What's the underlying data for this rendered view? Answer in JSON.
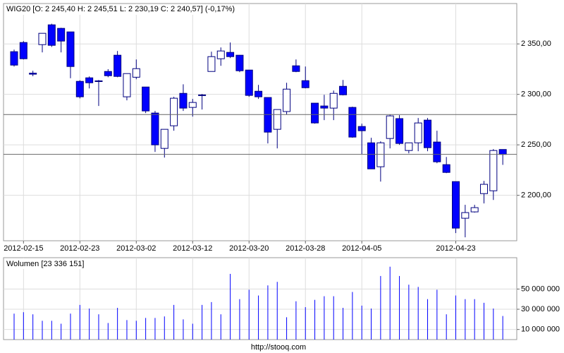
{
  "chart_data": [
    {
      "type": "candlestick",
      "title": "WIG20 [O: 2 245,40  H: 2 245,51  L: 2 230,19  C: 2 240,57] (-0,17%)",
      "categories": [
        null,
        "2012-02-15",
        null,
        null,
        null,
        null,
        null,
        "2012-02-23",
        null,
        null,
        null,
        null,
        null,
        "2012-03-02",
        null,
        null,
        null,
        null,
        null,
        "2012-03-12",
        null,
        null,
        null,
        null,
        null,
        "2012-03-20",
        null,
        null,
        null,
        null,
        null,
        "2012-03-28",
        null,
        null,
        null,
        null,
        null,
        "2012-04-05",
        null,
        null,
        null,
        null,
        null,
        null,
        null,
        null,
        null,
        "2012-04-23",
        null,
        null,
        null,
        null,
        null
      ],
      "open": [
        2342.3,
        2351.4,
        2321,
        2349.3,
        2368.9,
        2365.4,
        2361.9,
        2312.9,
        2316.4,
        2313.4,
        2322.7,
        2338.8,
        2297.6,
        2317,
        2307.3,
        2281.5,
        2246.5,
        2268.9,
        2301,
        2287.1,
        2299.5,
        2322.7,
        2335.3,
        2341.6,
        2338.8,
        2324.1,
        2303.1,
        2296.9,
        2265.4,
        2283,
        2328.3,
        2313.6,
        2291.3,
        2288.5,
        2286.4,
        2308,
        2287.1,
        2268.2,
        2252,
        2228.3,
        2256.3,
        2276,
        2244.4,
        2252,
        2274.5,
        2252.8,
        2230.4,
        2213.6,
        2177.3,
        2183.6,
        2201.7,
        2204.5,
        2245.4
      ],
      "high": [
        2344.4,
        2352.8,
        2323.4,
        2360.5,
        2370,
        2366,
        2362,
        2314,
        2317.8,
        2314.3,
        2325,
        2343,
        2320.6,
        2334.6,
        2307.3,
        2283.6,
        2265.4,
        2297.6,
        2310,
        2295.5,
        2300.4,
        2342.3,
        2346.5,
        2351.4,
        2339,
        2324.1,
        2309.4,
        2296.9,
        2285,
        2311.5,
        2334.6,
        2327.6,
        2291.3,
        2299.6,
        2303.8,
        2314.3,
        2287.8,
        2271,
        2257,
        2253.5,
        2280,
        2279.4,
        2252,
        2276.6,
        2276.6,
        2264,
        2238,
        2213.6,
        2190.6,
        2190.6,
        2214.3,
        2245.8,
        2245.51
      ],
      "low": [
        2327.6,
        2334.6,
        2318,
        2341.6,
        2347,
        2341.6,
        2316,
        2296,
        2305.9,
        2288.5,
        2317,
        2317,
        2294.1,
        2315,
        2281.5,
        2243,
        2237.4,
        2264,
        2283.6,
        2278,
        2285,
        2322.7,
        2328.3,
        2336,
        2322,
        2297.6,
        2295.5,
        2251.4,
        2246.5,
        2280,
        2322,
        2306,
        2271,
        2274.5,
        2274.5,
        2299,
        2257,
        2241,
        2226,
        2213.6,
        2246.5,
        2250,
        2241.6,
        2243.7,
        2243.7,
        2231.8,
        2222,
        2162.6,
        2158.4,
        2182.9,
        2192,
        2195.4,
        2230.19
      ],
      "close": [
        2329,
        2335.3,
        2320,
        2360.5,
        2348.6,
        2352.8,
        2327.6,
        2297.6,
        2311.5,
        2313,
        2318.5,
        2317.8,
        2320.6,
        2325.5,
        2283.6,
        2250,
        2265.4,
        2296.2,
        2286.4,
        2292,
        2299,
        2337.4,
        2343,
        2337.4,
        2323.4,
        2299,
        2297.6,
        2262.6,
        2285,
        2305.2,
        2322.7,
        2306.6,
        2271.7,
        2286.4,
        2301,
        2299.6,
        2257.7,
        2264,
        2226.2,
        2252,
        2278.7,
        2251.4,
        2252,
        2271.7,
        2247.2,
        2233.2,
        2222.7,
        2167.5,
        2182.9,
        2187.8,
        2210.9,
        2244.4,
        2240.57
      ],
      "up_color": "#ffffff",
      "down_color": "#0000ff",
      "outline_color": "#000080",
      "ylim": [
        2155,
        2390
      ],
      "yticks": [
        {
          "value": 2200,
          "label": "2 200,00"
        },
        {
          "value": 2250,
          "label": "2 250,00"
        },
        {
          "value": 2300,
          "label": "2 300,00"
        },
        {
          "value": 2350,
          "label": "2 350,00"
        }
      ],
      "reference_lines": [
        2280,
        2240.57
      ],
      "grid": true
    },
    {
      "type": "bar",
      "title": "Wolumen [23 336 151]",
      "values": [
        25700000,
        27100000,
        25000000,
        18600000,
        18600000,
        15700000,
        25700000,
        34300000,
        30700000,
        25000000,
        16400000,
        31400000,
        19300000,
        18600000,
        21400000,
        21400000,
        22900000,
        34300000,
        20000000,
        15700000,
        34300000,
        37100000,
        25000000,
        65000000,
        40000000,
        49300000,
        43600000,
        53600000,
        57100000,
        22100000,
        37900000,
        32100000,
        39300000,
        42900000,
        42900000,
        31400000,
        47100000,
        33600000,
        30700000,
        62900000,
        72100000,
        62900000,
        54300000,
        52100000,
        40000000,
        49300000,
        25000000,
        43600000,
        40000000,
        40000000,
        36400000,
        30700000,
        23336151
      ],
      "color": "#0000ff",
      "ylim": [
        0,
        81000000
      ],
      "yticks": [
        {
          "value": 10000000,
          "label": "10 000 000"
        },
        {
          "value": 30000000,
          "label": "30 000 000"
        },
        {
          "value": 50000000,
          "label": "50 000 000"
        }
      ],
      "grid": true
    }
  ],
  "footer": "http://stooq.com"
}
